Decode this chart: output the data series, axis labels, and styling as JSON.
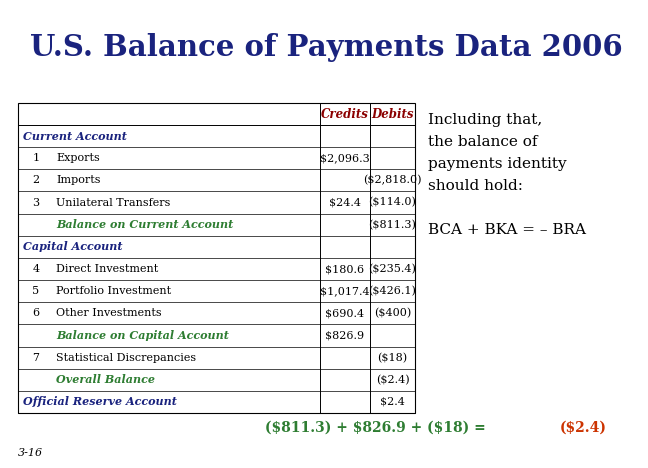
{
  "title": "U.S. Balance of Payments Data 2006",
  "title_color": "#1a237e",
  "background_color": "#ffffff",
  "rows": [
    {
      "type": "section",
      "num": "",
      "label": "Current Account",
      "credits": "",
      "debits": ""
    },
    {
      "type": "data",
      "num": "1",
      "label": "Exports",
      "credits": "$2,096.3",
      "debits": ""
    },
    {
      "type": "data",
      "num": "2",
      "label": "Imports",
      "credits": "",
      "debits": "($2,818.0)"
    },
    {
      "type": "data",
      "num": "3",
      "label": "Unilateral Transfers",
      "credits": "$24.4",
      "debits": "($114.0)"
    },
    {
      "type": "balance",
      "num": "",
      "label": "Balance on Current Account",
      "credits": "",
      "debits": "($811.3)"
    },
    {
      "type": "section",
      "num": "",
      "label": "Capital Account",
      "credits": "",
      "debits": ""
    },
    {
      "type": "data",
      "num": "4",
      "label": "Direct Investment",
      "credits": "$180.6",
      "debits": "($235.4)"
    },
    {
      "type": "data",
      "num": "5",
      "label": "Portfolio Investment",
      "credits": "$1,017.4",
      "debits": "($426.1)"
    },
    {
      "type": "data",
      "num": "6",
      "label": "Other Investments",
      "credits": "$690.4",
      "debits": "($400)"
    },
    {
      "type": "balance",
      "num": "",
      "label": "Balance on Capital Account",
      "credits": "$826.9",
      "debits": ""
    },
    {
      "type": "data",
      "num": "7",
      "label": "Statistical Discrepancies",
      "credits": "",
      "debits": "($18)"
    },
    {
      "type": "balance",
      "num": "",
      "label": "Overall Balance",
      "credits": "",
      "debits": "($2.4)"
    },
    {
      "type": "section",
      "num": "",
      "label": "Official Reserve Account",
      "credits": "",
      "debits": "$2.4"
    }
  ],
  "header_credits": "Credits",
  "header_debits": "Debits",
  "header_color": "#8b0000",
  "section_color": "#1a237e",
  "balance_color": "#2e7d32",
  "data_color": "#000000",
  "side_lines": [
    "Including that,",
    "the balance of",
    "payments identity",
    "should hold:",
    "",
    "BCA + BKA = – BRA"
  ],
  "bottom_green": "($811.3) + $826.9 + ($18) = ",
  "bottom_red": "($2.4)",
  "bottom_green_color": "#2e7d32",
  "bottom_red_color": "#cc3300",
  "slide_num": "3-16"
}
